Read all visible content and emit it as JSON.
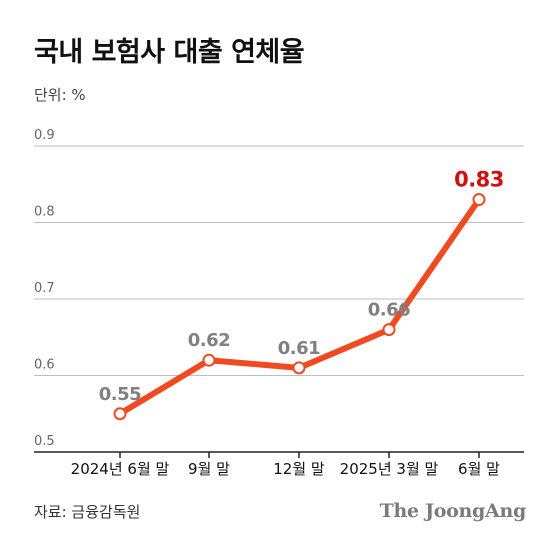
{
  "title": "국내 보험사 대출 연체율",
  "unit_label": "단위: %",
  "source": "자료: 금융감독원",
  "publisher": "The JoongAng",
  "colors": {
    "line": "#f04a23",
    "highlight_label": "#d10f0f",
    "label": "#808080",
    "grid": "#bdbdbd",
    "axis": "#222222"
  },
  "chart_data": {
    "type": "line",
    "title": "국내 보험사 대출 연체율",
    "ylabel": "단위: %",
    "xlabel": "",
    "categories": [
      "2024년 6월 말",
      "9월 말",
      "12월 말",
      "2025년 3월 말",
      "6월 말"
    ],
    "series": [
      {
        "values": [
          0.55,
          0.62,
          0.61,
          0.66,
          0.83
        ]
      }
    ],
    "data_labels": [
      "0.55",
      "0.62",
      "0.61",
      "0.66",
      "0.83"
    ],
    "highlight_index": 4,
    "ylim": [
      0.5,
      0.9
    ],
    "yticks": [
      0.5,
      0.6,
      0.7,
      0.8,
      0.9
    ],
    "ytick_labels": [
      "0.5",
      "0.6",
      "0.7",
      "0.8",
      "0.9"
    ],
    "grid": true,
    "legend": "none"
  }
}
